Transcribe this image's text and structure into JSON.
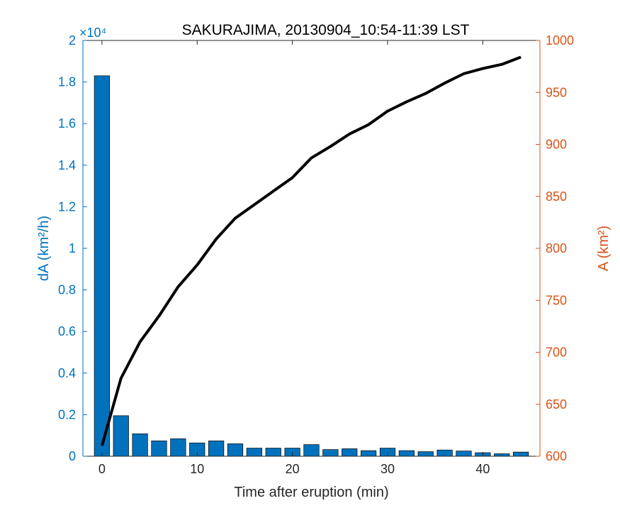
{
  "chart_data": {
    "type": "bar+line",
    "title": "SAKURAJIMA, 20130904_10:54-11:39 LST",
    "xlabel": "Time after eruption (min)",
    "ylabel_left": "dA (km²/h)",
    "ylabel_right": "A (km²)",
    "left_axis_multiplier": "×10⁴",
    "xlim": [
      -2,
      46
    ],
    "ylim_left": [
      0,
      20000
    ],
    "ylim_right": [
      600,
      1000
    ],
    "x_ticks": [
      "0",
      "10",
      "20",
      "30",
      "40"
    ],
    "y_left_ticks": [
      "0",
      "0.2",
      "0.4",
      "0.6",
      "0.8",
      "1",
      "1.2",
      "1.4",
      "1.6",
      "1.8",
      "2"
    ],
    "y_right_ticks": [
      "600",
      "650",
      "700",
      "750",
      "800",
      "850",
      "900",
      "950",
      "1000"
    ],
    "series": [
      {
        "type": "bar",
        "axis": "left",
        "color": "#0072BD",
        "x": [
          0,
          2,
          4,
          6,
          8,
          10,
          12,
          14,
          16,
          18,
          20,
          22,
          24,
          26,
          28,
          30,
          32,
          34,
          36,
          38,
          40,
          42,
          44
        ],
        "values": [
          18300,
          1950,
          1080,
          740,
          840,
          640,
          740,
          600,
          390,
          390,
          390,
          560,
          320,
          360,
          270,
          390,
          270,
          220,
          300,
          250,
          170,
          120,
          200
        ]
      },
      {
        "type": "line",
        "axis": "right",
        "color": "#000000",
        "x": [
          0,
          2,
          4,
          6,
          8,
          10,
          12,
          14,
          16,
          18,
          20,
          22,
          24,
          26,
          28,
          30,
          32,
          34,
          36,
          38,
          40,
          42,
          44
        ],
        "values": [
          610,
          675,
          710,
          735,
          763,
          784,
          809,
          829,
          842,
          855,
          868,
          887,
          898,
          910,
          919,
          932,
          941,
          949,
          959,
          968,
          973,
          977,
          984
        ]
      }
    ]
  }
}
